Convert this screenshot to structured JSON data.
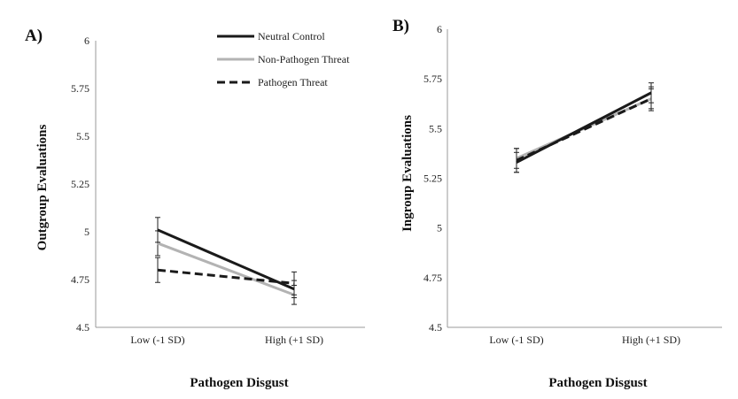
{
  "chart_data": [
    {
      "type": "line",
      "panel_label": "A)",
      "categories": [
        "Low (-1 SD)",
        "High (+1 SD)"
      ],
      "xlabel": "Pathogen Disgust",
      "ylabel": "Outgroup Evaluations",
      "ylim": [
        4.5,
        6
      ],
      "yticks": [
        4.5,
        4.75,
        5,
        5.25,
        5.5,
        5.75,
        6
      ],
      "ytick_labels": [
        "4.5",
        "4.75",
        "5",
        "5.25",
        "5.5",
        "5.75",
        "6"
      ],
      "grid": false,
      "legend": "top-right",
      "series": [
        {
          "name": "Neutral Control",
          "values": [
            5.01,
            4.7
          ],
          "err": [
            0.065,
            0.045
          ],
          "color": "#1a1a1a",
          "dash": "solid"
        },
        {
          "name": "Non-Pathogen Threat",
          "values": [
            4.94,
            4.67
          ],
          "err": [
            0.065,
            0.05
          ],
          "color": "#b3b3b3",
          "dash": "solid"
        },
        {
          "name": "Pathogen Threat",
          "values": [
            4.8,
            4.73
          ],
          "err": [
            0.065,
            0.06
          ],
          "color": "#1a1a1a",
          "dash": "dashed"
        }
      ]
    },
    {
      "type": "line",
      "panel_label": "B)",
      "categories": [
        "Low (-1 SD)",
        "High (+1 SD)"
      ],
      "xlabel": "Pathogen Disgust",
      "ylabel": "Ingroup Evaluations",
      "ylim": [
        4.5,
        6
      ],
      "yticks": [
        4.5,
        4.75,
        5,
        5.25,
        5.5,
        5.75,
        6
      ],
      "ytick_labels": [
        "4.5",
        "4.75",
        "5",
        "5.25",
        "5.5",
        "5.75",
        "6"
      ],
      "grid": false,
      "series": [
        {
          "name": "Neutral Control",
          "values": [
            5.33,
            5.68
          ],
          "err": [
            0.05,
            0.05
          ],
          "color": "#1a1a1a",
          "dash": "solid"
        },
        {
          "name": "Non-Pathogen Threat",
          "values": [
            5.35,
            5.65
          ],
          "err": [
            0.05,
            0.05
          ],
          "color": "#b3b3b3",
          "dash": "solid"
        },
        {
          "name": "Pathogen Threat",
          "values": [
            5.34,
            5.65
          ],
          "err": [
            0.06,
            0.06
          ],
          "color": "#1a1a1a",
          "dash": "dashed"
        }
      ]
    }
  ]
}
